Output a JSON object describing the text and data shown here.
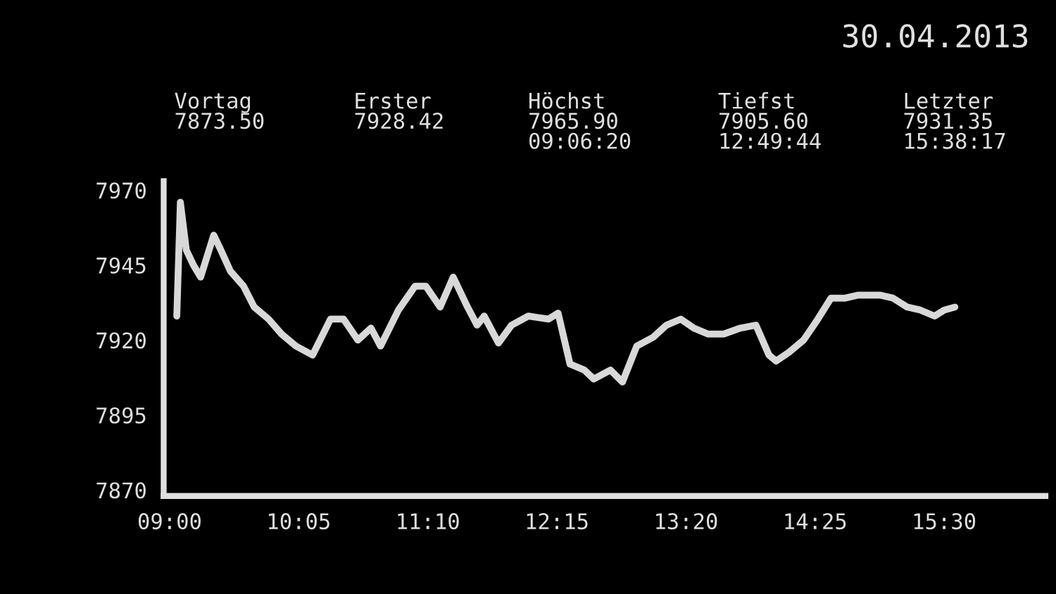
{
  "chart_data": {
    "type": "line",
    "title": "30.04.2013",
    "annotations": [
      "Vortag\n7873.50",
      "Erster\n7928.42",
      "Höchst\n7965.90\n09:06:20",
      "Tiefst\n7905.60\n12:49:44",
      "Letzter\n7931.35\n15:38:17"
    ],
    "x": [
      9.06,
      9.09,
      9.14,
      9.2,
      9.26,
      9.37,
      9.43,
      9.51,
      9.62,
      9.71,
      9.83,
      9.94,
      10.06,
      10.2,
      10.35,
      10.46,
      10.58,
      10.69,
      10.77,
      10.92,
      11.06,
      11.15,
      11.27,
      11.38,
      11.5,
      11.58,
      11.64,
      11.76,
      11.87,
      12.01,
      12.18,
      12.26,
      12.36,
      12.48,
      12.56,
      12.7,
      12.8,
      12.92,
      13.06,
      13.17,
      13.29,
      13.4,
      13.52,
      13.65,
      13.79,
      13.92,
      14.03,
      14.09,
      14.2,
      14.32,
      14.44,
      14.55,
      14.67,
      14.78,
      14.96,
      15.07,
      15.19,
      15.3,
      15.42,
      15.5,
      15.59
    ],
    "series": [
      {
        "color": "#d8d8d8",
        "values": [
          7928,
          7966,
          7950,
          7945,
          7941,
          7955,
          7950,
          7943,
          7938,
          7931,
          7927,
          7922,
          7918,
          7915,
          7927,
          7927,
          7920,
          7924,
          7918,
          7930,
          7938,
          7938,
          7931,
          7941,
          7931,
          7925,
          7928,
          7919,
          7925,
          7928,
          7927,
          7929,
          7912,
          7910,
          7907,
          7910,
          7906,
          7918,
          7921,
          7925,
          7927,
          7924,
          7922,
          7922,
          7924,
          7925,
          7915,
          7913,
          7916,
          7920,
          7927,
          7934,
          7934,
          7935,
          7935,
          7934,
          7931,
          7930,
          7928,
          7930,
          7931
        ]
      }
    ],
    "xlim": [
      8.95,
      16.35
    ],
    "xticks": [
      {
        "value": 9,
        "label": "09:00"
      },
      {
        "value": 10.0833,
        "label": "10:05"
      },
      {
        "value": 11.1667,
        "label": "11:10"
      },
      {
        "value": 12.25,
        "label": "12:15"
      },
      {
        "value": 13.3333,
        "label": "13:20"
      },
      {
        "value": 14.4167,
        "label": "14:25"
      },
      {
        "value": 15.5,
        "label": "15:30"
      }
    ],
    "ylim": [
      7868,
      7973
    ],
    "yticks": [
      7870,
      7895,
      7920,
      7945,
      7970
    ],
    "grid": false,
    "legend": false,
    "marker": "none",
    "line_style": "solid"
  }
}
